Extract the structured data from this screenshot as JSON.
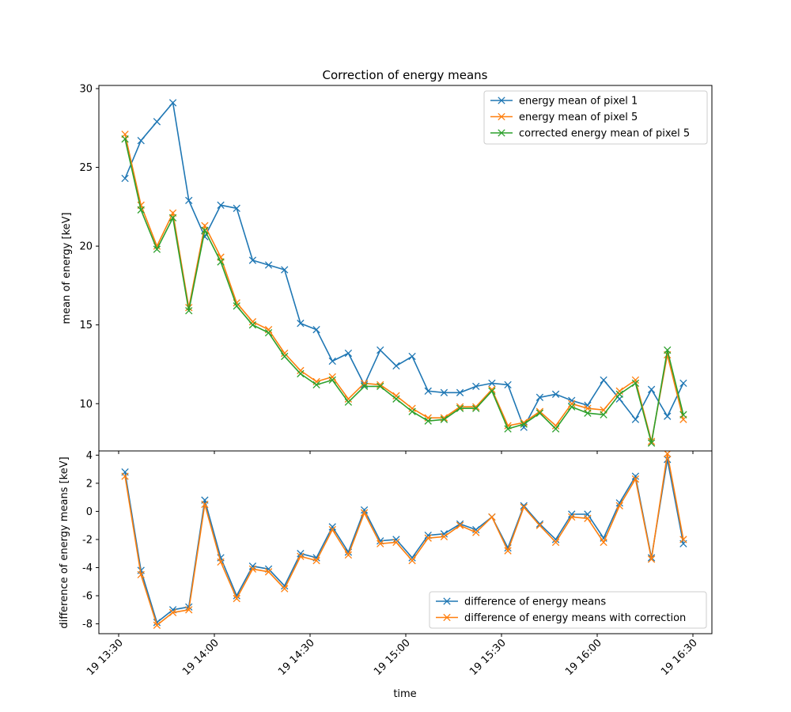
{
  "chart_data": [
    {
      "type": "line",
      "title": "Correction of energy means",
      "xlabel": "",
      "ylabel": "mean of energy [keV]",
      "xlim": [
        "2023-01-19T13:30:00",
        "2023-01-19T16:30:00"
      ],
      "ylim": [
        7.0,
        30.2
      ],
      "yticks": [
        10,
        15,
        20,
        25,
        30
      ],
      "grid": false,
      "legend_position": "upper right",
      "x": [
        "2023-01-19T13:32:00",
        "2023-01-19T13:37:00",
        "2023-01-19T13:42:00",
        "2023-01-19T13:47:00",
        "2023-01-19T13:52:00",
        "2023-01-19T13:57:00",
        "2023-01-19T14:02:00",
        "2023-01-19T14:07:00",
        "2023-01-19T14:12:00",
        "2023-01-19T14:17:00",
        "2023-01-19T14:22:00",
        "2023-01-19T14:27:00",
        "2023-01-19T14:32:00",
        "2023-01-19T14:37:00",
        "2023-01-19T14:42:00",
        "2023-01-19T14:47:00",
        "2023-01-19T14:52:00",
        "2023-01-19T14:57:00",
        "2023-01-19T15:02:00",
        "2023-01-19T15:07:00",
        "2023-01-19T15:12:00",
        "2023-01-19T15:17:00",
        "2023-01-19T15:22:00",
        "2023-01-19T15:27:00",
        "2023-01-19T15:32:00",
        "2023-01-19T15:37:00",
        "2023-01-19T15:42:00",
        "2023-01-19T15:47:00",
        "2023-01-19T15:52:00",
        "2023-01-19T15:57:00",
        "2023-01-19T16:02:00",
        "2023-01-19T16:07:00",
        "2023-01-19T16:12:00",
        "2023-01-19T16:17:00",
        "2023-01-19T16:22:00",
        "2023-01-19T16:27:00"
      ],
      "series": [
        {
          "name": "energy mean of pixel 1",
          "color": "#1f77b4",
          "values": [
            24.3,
            26.7,
            27.9,
            29.1,
            22.9,
            20.6,
            22.6,
            22.4,
            19.1,
            18.8,
            18.5,
            15.1,
            14.7,
            12.7,
            13.2,
            11.2,
            13.4,
            12.4,
            13.0,
            10.8,
            10.7,
            10.7,
            11.1,
            11.3,
            11.2,
            8.5,
            10.4,
            10.6,
            10.2,
            9.9,
            11.5,
            10.3,
            9.0,
            10.9,
            9.2,
            11.3
          ]
        },
        {
          "name": "energy mean of pixel 5",
          "color": "#ff7f0e",
          "values": [
            27.1,
            22.6,
            20.0,
            22.1,
            16.1,
            21.3,
            19.3,
            16.4,
            15.2,
            14.7,
            13.2,
            12.1,
            11.4,
            11.7,
            10.3,
            11.3,
            11.2,
            10.5,
            9.7,
            9.1,
            9.1,
            9.8,
            9.8,
            10.9,
            8.6,
            8.8,
            9.5,
            8.6,
            10.0,
            9.7,
            9.6,
            10.8,
            11.5,
            7.6,
            13.1,
            9.0
          ]
        },
        {
          "name": "corrected energy mean of pixel 5",
          "color": "#2ca02c",
          "values": [
            26.8,
            22.3,
            19.8,
            21.8,
            15.9,
            21.0,
            19.0,
            16.2,
            15.0,
            14.5,
            13.0,
            11.9,
            11.2,
            11.5,
            10.1,
            11.1,
            11.1,
            10.3,
            9.5,
            8.9,
            9.0,
            9.7,
            9.7,
            10.8,
            8.4,
            8.7,
            9.4,
            8.4,
            9.8,
            9.4,
            9.3,
            10.6,
            11.3,
            7.5,
            13.4,
            9.3
          ]
        }
      ]
    },
    {
      "type": "line",
      "title": "",
      "xlabel": "time",
      "ylabel": "difference of energy means [keV]",
      "xlim": [
        "2023-01-19T13:30:00",
        "2023-01-19T16:30:00"
      ],
      "ylim": [
        -8.7,
        4.3
      ],
      "yticks": [
        -8,
        -6,
        -4,
        -2,
        0,
        2,
        4
      ],
      "xtick_labels": [
        "19 13:30",
        "19 14:00",
        "19 14:30",
        "19 15:00",
        "19 15:30",
        "19 16:00",
        "19 16:30"
      ],
      "grid": false,
      "legend_position": "lower right",
      "series": [
        {
          "name": "difference of energy means",
          "color": "#1f77b4",
          "values": [
            2.8,
            -4.2,
            -7.9,
            -7.0,
            -6.8,
            0.8,
            -3.3,
            -6.0,
            -3.9,
            -4.1,
            -5.3,
            -3.0,
            -3.3,
            -1.1,
            -2.9,
            0.1,
            -2.1,
            -2.0,
            -3.3,
            -1.7,
            -1.6,
            -0.9,
            -1.3,
            -0.4,
            -2.6,
            0.4,
            -0.9,
            -2.0,
            -0.2,
            -0.2,
            -1.9,
            0.6,
            2.5,
            -3.3,
            3.7,
            -2.3
          ]
        },
        {
          "name": "difference of energy means with correction",
          "color": "#ff7f0e",
          "values": [
            2.5,
            -4.5,
            -8.1,
            -7.2,
            -7.0,
            0.5,
            -3.6,
            -6.2,
            -4.1,
            -4.3,
            -5.5,
            -3.2,
            -3.5,
            -1.3,
            -3.1,
            -0.1,
            -2.3,
            -2.2,
            -3.5,
            -1.9,
            -1.8,
            -1.0,
            -1.5,
            -0.4,
            -2.8,
            0.3,
            -1.0,
            -2.2,
            -0.4,
            -0.5,
            -2.2,
            0.4,
            2.3,
            -3.4,
            4.1,
            -2.0
          ]
        }
      ]
    }
  ]
}
